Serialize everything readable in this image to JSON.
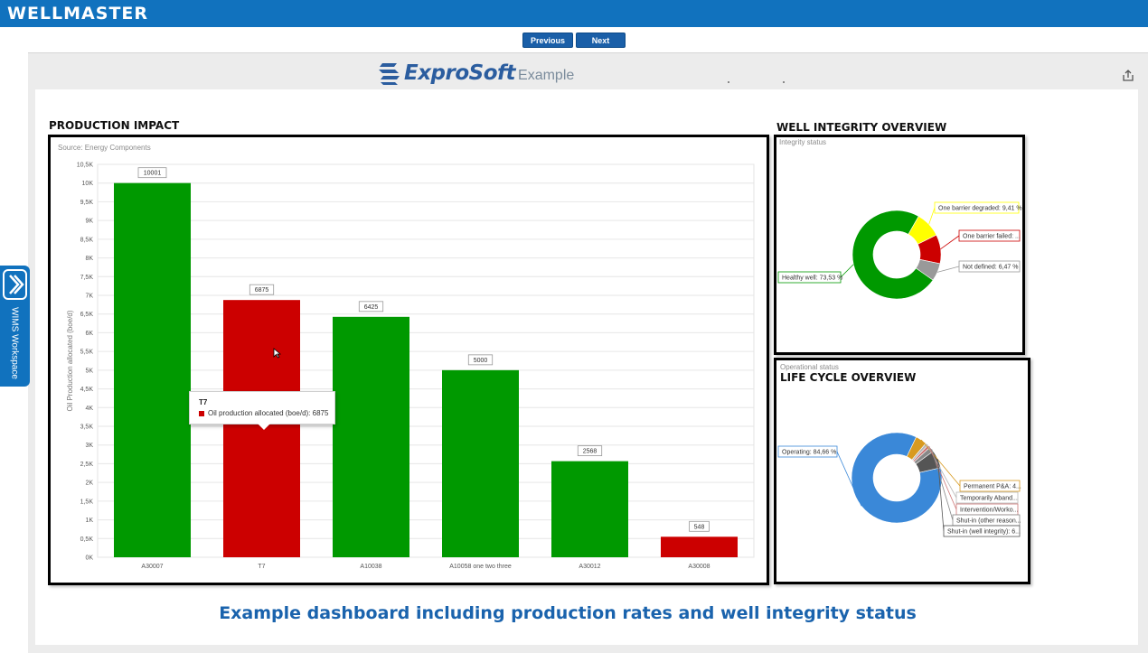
{
  "brand": "WELLMASTER",
  "nav": {
    "previous": "Previous",
    "next": "Next"
  },
  "logo": {
    "name": "ExproSoft",
    "suffix": "Example"
  },
  "side_tab": {
    "label": "WIMS Workspace"
  },
  "sections": {
    "production": {
      "title": "PRODUCTION IMPACT",
      "subtitle": "Source: Energy Components"
    },
    "well_integrity": {
      "title": "WELL INTEGRITY OVERVIEW",
      "subtitle": "Integrity status"
    },
    "life_cycle": {
      "title": "LIFE CYCLE OVERVIEW",
      "subtitle": "Operational status"
    }
  },
  "tooltip": {
    "title": "T7",
    "text": "Oil production allocated (boe/d): 6875"
  },
  "caption": "Example dashboard including production rates and well integrity status",
  "colors": {
    "brand_blue": "#1172be",
    "bar_green": "#009900",
    "bar_red": "#cc0000",
    "pie_blue": "#3a88d8"
  },
  "chart_data": [
    {
      "type": "bar",
      "title": "",
      "ylabel": "Oil Production allocated (boe/d)",
      "ylim": [
        0,
        10500
      ],
      "yticks": [
        "0K",
        "0,5K",
        "1K",
        "1,5K",
        "2K",
        "2,5K",
        "3K",
        "3,5K",
        "4K",
        "4,5K",
        "5K",
        "5,5K",
        "6K",
        "6,5K",
        "7K",
        "7,5K",
        "8K",
        "8,5K",
        "9K",
        "9,5K",
        "10K",
        "10,5K"
      ],
      "grid": true,
      "categories": [
        "A30007",
        "T7",
        "A10038",
        "A10058 one two three",
        "A30012",
        "A30008"
      ],
      "values": [
        10001,
        6875,
        6425,
        5000,
        2568,
        548
      ],
      "colors": [
        "#009900",
        "#cc0000",
        "#009900",
        "#009900",
        "#009900",
        "#cc0000"
      ]
    },
    {
      "type": "pie",
      "donut": true,
      "slices": [
        {
          "label": "Healthy well: 73,53 %",
          "value": 73.53,
          "color": "#009900"
        },
        {
          "label": "One barrier degraded: 9,41 %",
          "value": 9.41,
          "color": "#ffff00"
        },
        {
          "label": "One barrier failed: ...",
          "value": 10.59,
          "color": "#cc0000"
        },
        {
          "label": "Not defined: 6,47 %",
          "value": 6.47,
          "color": "#999999"
        }
      ]
    },
    {
      "type": "pie",
      "donut": true,
      "slices": [
        {
          "label": "Operating: 84,66 %",
          "value": 84.66,
          "color": "#3a88d8"
        },
        {
          "label": "Permanent P&A: 4...",
          "value": 4.0,
          "color": "#d89a20"
        },
        {
          "label": "Temporarily Aband...",
          "value": 1.0,
          "color": "#b8b8b8"
        },
        {
          "label": "Intervention/Worko...",
          "value": 1.0,
          "color": "#cc7777"
        },
        {
          "label": "Shut-in (other reason...",
          "value": 1.8,
          "color": "#888888"
        },
        {
          "label": "Shut-in (well integrity): 6...",
          "value": 6.3,
          "color": "#555555"
        }
      ]
    }
  ]
}
